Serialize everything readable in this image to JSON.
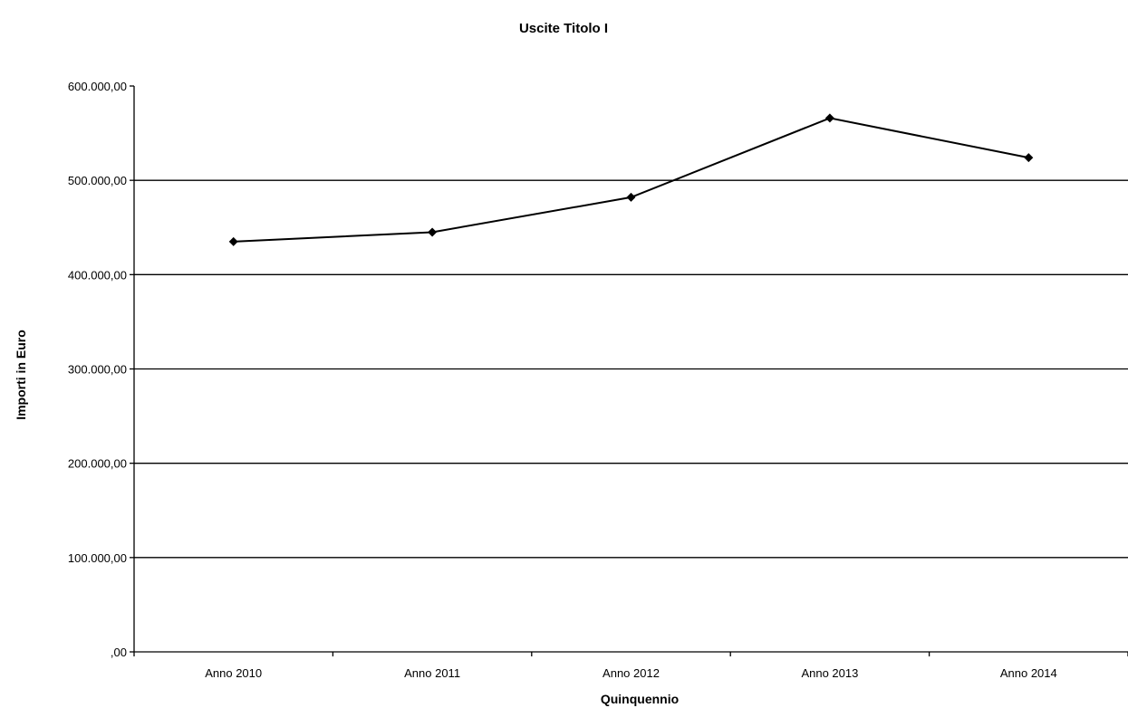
{
  "chart_data": {
    "type": "line",
    "title": "Uscite Titolo I",
    "xlabel": "Quinquennio",
    "ylabel": "Importi in Euro",
    "categories": [
      "Anno 2010",
      "Anno 2011",
      "Anno 2012",
      "Anno 2013",
      "Anno 2014"
    ],
    "series": [
      {
        "values": [
          435000,
          445000,
          482000,
          566000,
          524000
        ]
      }
    ],
    "ylim": [
      0,
      600000
    ],
    "yticks": [
      0,
      100000,
      200000,
      300000,
      400000,
      500000,
      600000
    ],
    "ytick_labels": [
      ",00",
      "100.000,00",
      "200.000,00",
      "300.000,00",
      "400.000,00",
      "500.000,00",
      "600.000,00"
    ],
    "grid": true,
    "legend": "none",
    "colors": {
      "line": "#000000",
      "grid": "#000000",
      "background": "#ffffff"
    },
    "marker": "diamond"
  }
}
